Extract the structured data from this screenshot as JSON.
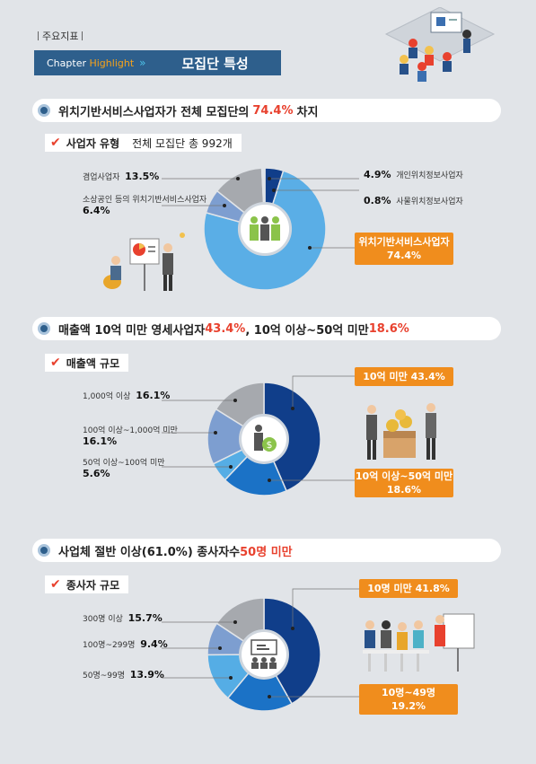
{
  "header": {
    "tab": "주요지표",
    "chapter_label": "Chapter",
    "chapter_highlight": "Highlight",
    "title": "모집단 특성"
  },
  "sections": [
    {
      "text": "위치기반서비스사업자가 전체 모집단의 ",
      "highlight": "74.4%",
      "suffix": " 차지"
    },
    {
      "text": "매출액 10억 미만 영세사업자 ",
      "highlight": "43.4%",
      "middle": ", 10억 이상~50억 미만 ",
      "highlight2": "18.6%"
    },
    {
      "text": "사업체 절반 이상(61.0%) 종사자수 ",
      "highlight": "50명 미만"
    }
  ],
  "subs": [
    {
      "label": "사업자 유형",
      "extra": "전체 모집단 총 992개"
    },
    {
      "label": "매출액 규모"
    },
    {
      "label": "종사자 규모"
    }
  ],
  "chart_data": [
    {
      "type": "pie",
      "categories": [
        "개인위치정보사업자",
        "위치기반서비스사업자",
        "소상공인 등의 위치기반서비스사업자",
        "겸업사업자",
        "사물위치정보사업자"
      ],
      "values": [
        4.9,
        74.4,
        6.4,
        13.5,
        0.8
      ],
      "colors": [
        "#103e8a",
        "#5aaee6",
        "#7d9ed0",
        "#a6a9ae",
        "#dfe3e8"
      ],
      "labels": {
        "c1": {
          "name": "겸업사업자",
          "value": "13.5%"
        },
        "c2": {
          "name": "소상공인 등의 위치기반서비스사업자",
          "value": "6.4%"
        },
        "c3": {
          "value": "4.9%",
          "name": "개인위치정보사업자"
        },
        "c4": {
          "value": "0.8%",
          "name": "사물위치정보사업자"
        },
        "c5": {
          "name": "위치기반서비스사업자",
          "value": "74.4%"
        }
      }
    },
    {
      "type": "pie",
      "categories": [
        "10억 미만",
        "10억 이상~50억 미만",
        "50억 이상~100억 미만",
        "100억 이상~1,000억 미만",
        "1,000억 이상"
      ],
      "values": [
        43.4,
        18.6,
        5.6,
        16.1,
        16.1
      ],
      "colors": [
        "#103e8a",
        "#1b72c6",
        "#55ade5",
        "#7d9ed0",
        "#a6a9ae"
      ],
      "labels": {
        "c1": {
          "name": "1,000억 이상",
          "value": "16.1%"
        },
        "c2": {
          "name": "100억 이상~1,000억 미만",
          "value": "16.1%"
        },
        "c3": {
          "name": "50억 이상~100억 미만",
          "value": "5.6%"
        },
        "c4": {
          "name": "10억 미만",
          "value": "43.4%"
        },
        "c5": {
          "name": "10억 이상~50억 미만",
          "value": "18.6%"
        }
      }
    },
    {
      "type": "pie",
      "categories": [
        "10명 미만",
        "10명~49명",
        "50명~99명",
        "100명~299명",
        "300명 이상"
      ],
      "values": [
        41.8,
        19.2,
        13.9,
        9.4,
        15.7
      ],
      "colors": [
        "#103e8a",
        "#1b72c6",
        "#55ade5",
        "#7d9ed0",
        "#a6a9ae"
      ],
      "labels": {
        "c1": {
          "name": "300명 이상",
          "value": "15.7%"
        },
        "c2": {
          "name": "100명~299명",
          "value": "9.4%"
        },
        "c3": {
          "name": "50명~99명",
          "value": "13.9%"
        },
        "c4": {
          "name": "10명 미만",
          "value": "41.8%"
        },
        "c5": {
          "name": "10명~49명",
          "value": "19.2%"
        }
      }
    }
  ]
}
